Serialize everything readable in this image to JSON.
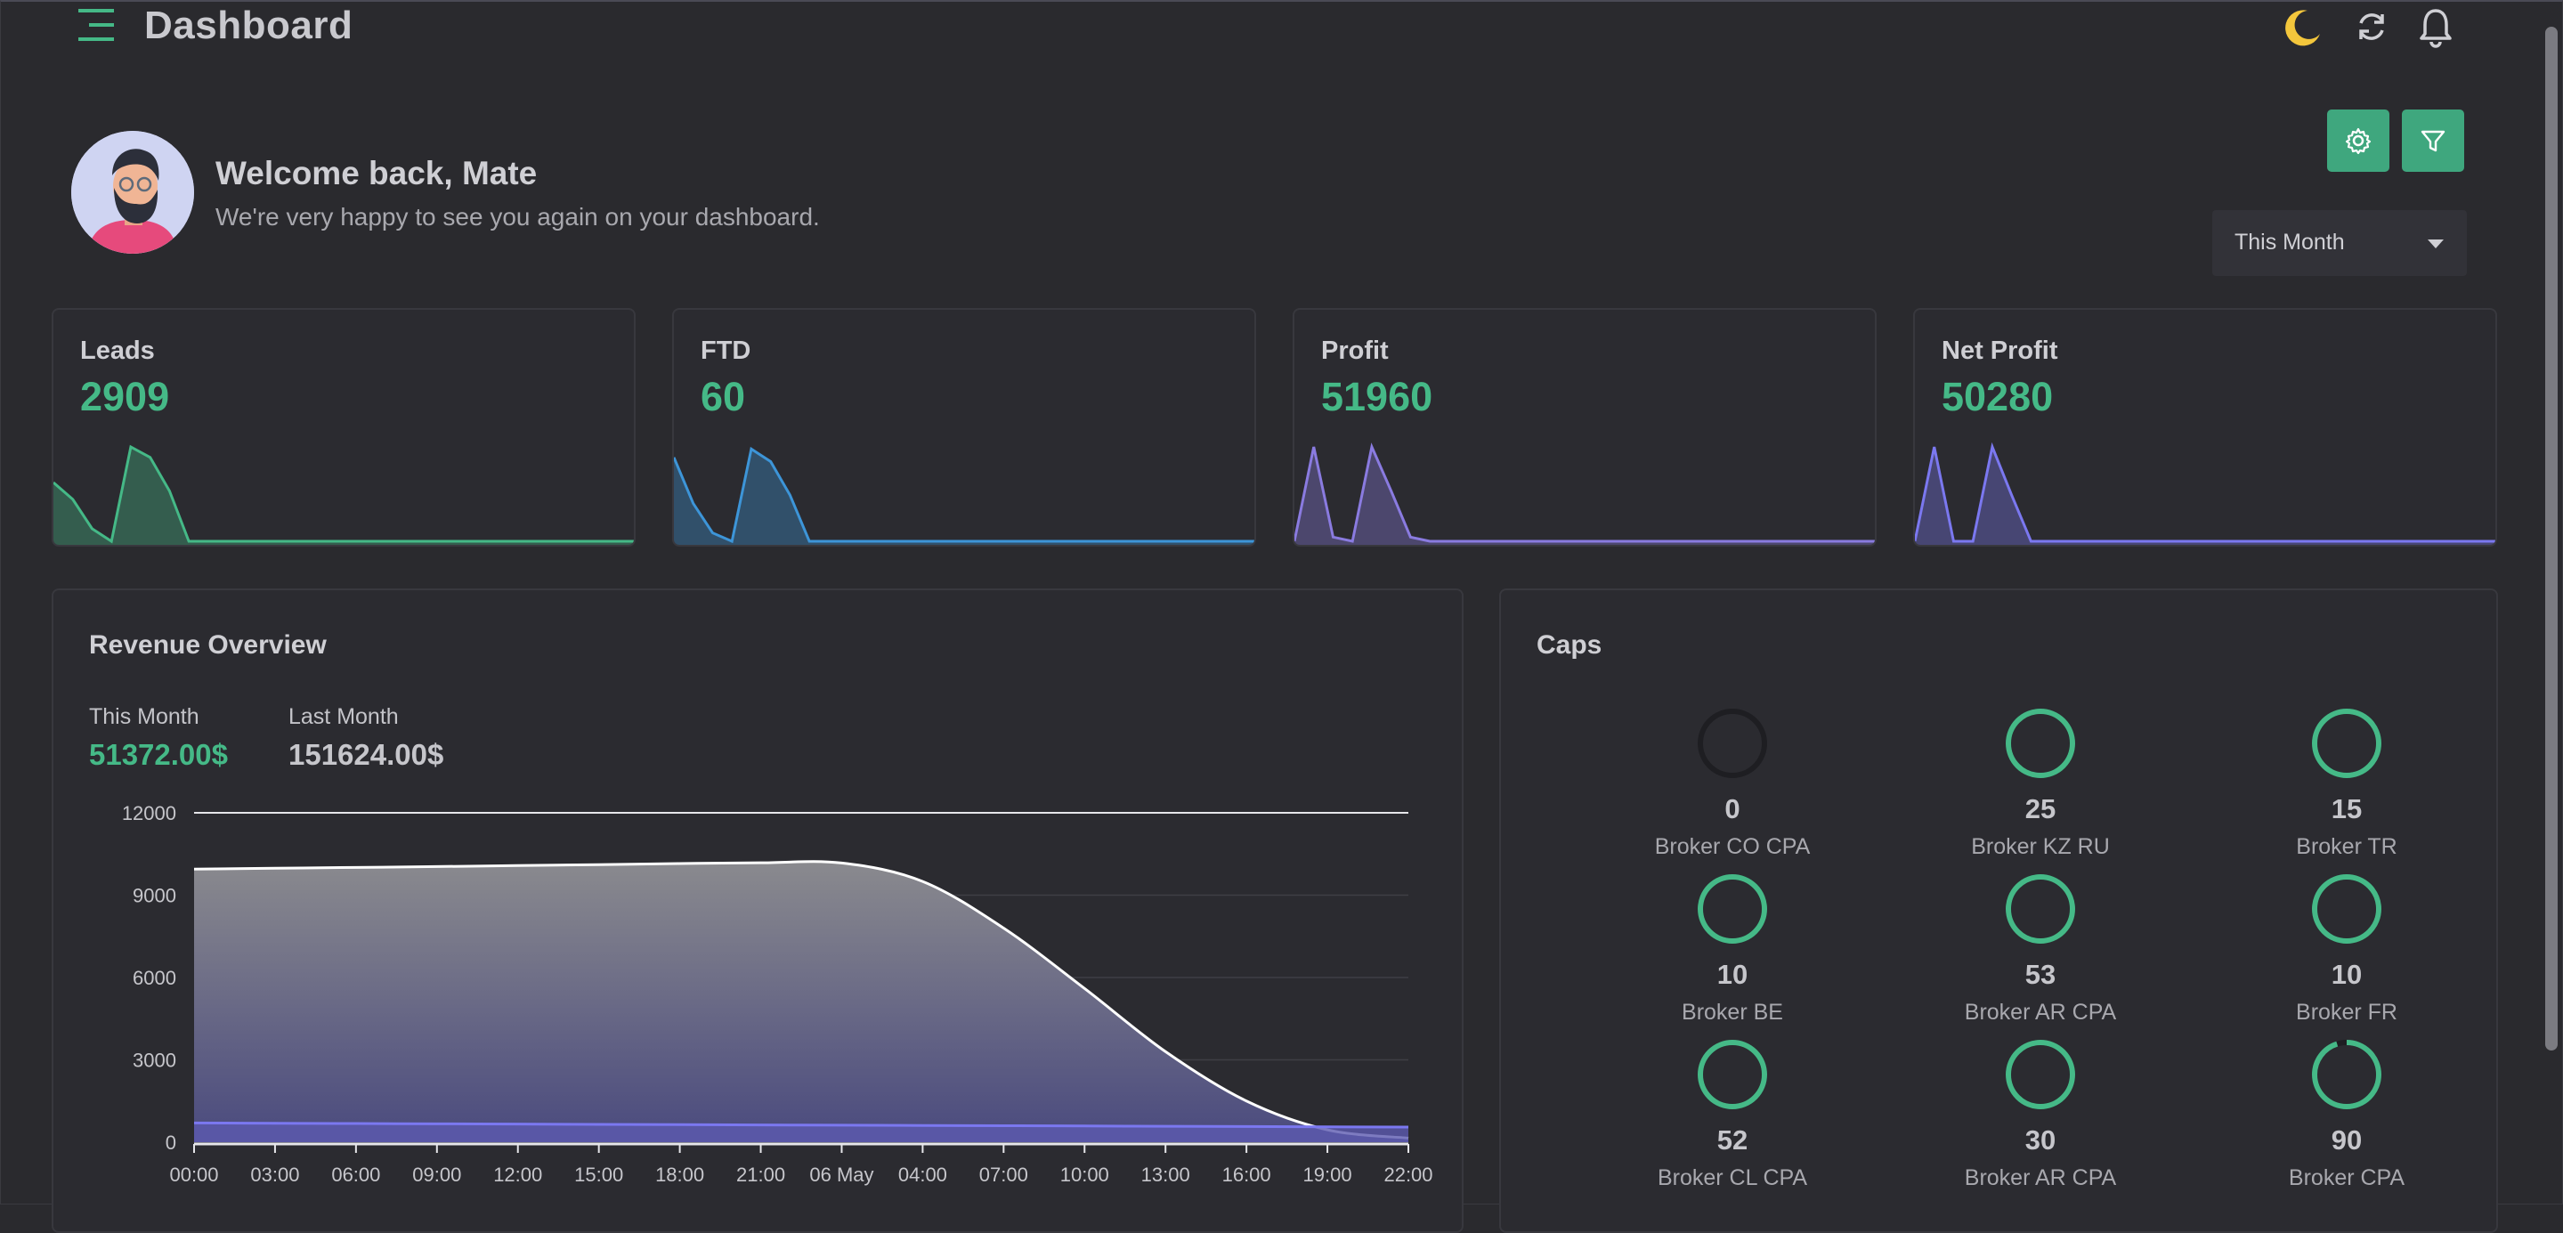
{
  "header": {
    "title": "Dashboard",
    "icons": [
      "menu-icon",
      "moon-icon",
      "refresh-icon",
      "bell-icon"
    ]
  },
  "welcome": {
    "title": "Welcome back, Mate",
    "subtitle": "We're very happy to see you again on your dashboard."
  },
  "period": {
    "selected": "This Month"
  },
  "stats": [
    {
      "label": "Leads",
      "value": "2909",
      "color": "#45b987",
      "spark": [
        28,
        20,
        6,
        0,
        45,
        40,
        24,
        0,
        0,
        0,
        0,
        0,
        0,
        0,
        0,
        0,
        0,
        0,
        0,
        0,
        0,
        0,
        0,
        0,
        0,
        0,
        0,
        0,
        0,
        0,
        0
      ]
    },
    {
      "label": "FTD",
      "value": "60",
      "color": "#3d95d8",
      "spark": [
        40,
        18,
        4,
        0,
        44,
        38,
        22,
        0,
        0,
        0,
        0,
        0,
        0,
        0,
        0,
        0,
        0,
        0,
        0,
        0,
        0,
        0,
        0,
        0,
        0,
        0,
        0,
        0,
        0,
        0,
        0
      ]
    },
    {
      "label": "Profit",
      "value": "51960",
      "color": "#8a7be0",
      "spark": [
        0,
        45,
        2,
        0,
        45,
        24,
        2,
        0,
        0,
        0,
        0,
        0,
        0,
        0,
        0,
        0,
        0,
        0,
        0,
        0,
        0,
        0,
        0,
        0,
        0,
        0,
        0,
        0,
        0,
        0,
        0
      ]
    },
    {
      "label": "Net Profit",
      "value": "50280",
      "color": "#7b78f0",
      "spark": [
        0,
        45,
        0,
        0,
        45,
        22,
        0,
        0,
        0,
        0,
        0,
        0,
        0,
        0,
        0,
        0,
        0,
        0,
        0,
        0,
        0,
        0,
        0,
        0,
        0,
        0,
        0,
        0,
        0,
        0,
        0
      ]
    }
  ],
  "revenue": {
    "title": "Revenue Overview",
    "this_month_label": "This Month",
    "this_month_value": "51372.00$",
    "last_month_label": "Last Month",
    "last_month_value": "151624.00$"
  },
  "chart_data": {
    "type": "area",
    "x": [
      "00:00",
      "03:00",
      "06:00",
      "09:00",
      "12:00",
      "15:00",
      "18:00",
      "21:00",
      "06 May",
      "04:00",
      "07:00",
      "10:00",
      "13:00",
      "16:00",
      "19:00",
      "22:00"
    ],
    "yticks": [
      0,
      3000,
      6000,
      9000,
      12000
    ],
    "ylim": [
      0,
      12000
    ],
    "series": [
      {
        "values": [
          9950,
          9980,
          10010,
          10040,
          10080,
          10110,
          10150,
          10180,
          10170,
          9500,
          7800,
          5600,
          3300,
          1500,
          450,
          150
        ],
        "color": "#ffffff"
      },
      {
        "values": [
          700,
          690,
          680,
          670,
          660,
          650,
          640,
          630,
          620,
          610,
          600,
          590,
          580,
          570,
          560,
          550
        ],
        "color": "#7b78f0"
      }
    ],
    "grid": true
  },
  "caps": {
    "title": "Caps",
    "items": [
      {
        "value": "0",
        "name": "Broker CO CPA",
        "fill": 0
      },
      {
        "value": "25",
        "name": "Broker KZ RU",
        "fill": 1
      },
      {
        "value": "15",
        "name": "Broker TR",
        "fill": 1
      },
      {
        "value": "10",
        "name": "Broker BE",
        "fill": 1
      },
      {
        "value": "53",
        "name": "Broker AR CPA",
        "fill": 1
      },
      {
        "value": "10",
        "name": "Broker FR",
        "fill": 1
      },
      {
        "value": "52",
        "name": "Broker CL CPA",
        "fill": 1
      },
      {
        "value": "30",
        "name": "Broker AR CPA",
        "fill": 1
      },
      {
        "value": "90",
        "name": "Broker CPA",
        "fill": 0.95
      }
    ]
  }
}
